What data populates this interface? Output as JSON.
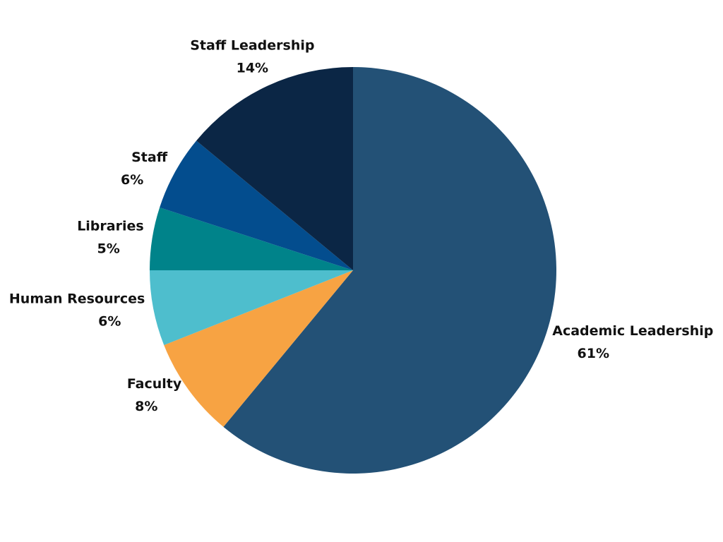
{
  "chart_data": {
    "type": "pie",
    "categories": [
      "Academic Leadership",
      "Faculty",
      "Human Resources",
      "Libraries",
      "Staff",
      "Staff Leadership"
    ],
    "values": [
      61,
      8,
      6,
      5,
      6,
      14
    ],
    "value_labels": [
      "61%",
      "8%",
      "6%",
      "5%",
      "6%",
      "14%"
    ],
    "colors": [
      "#235176",
      "#f7a343",
      "#4ebecd",
      "#00838a",
      "#034d8e",
      "#0b2645"
    ]
  }
}
